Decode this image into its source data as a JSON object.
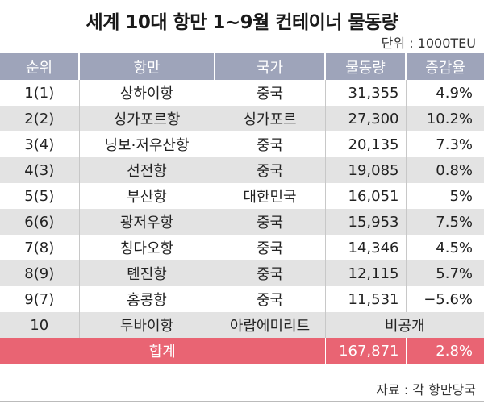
{
  "title": "세계 10대 항만 1~9월 컨테이너 물동량",
  "unit": "단위 : 1000TEU",
  "headers": [
    "순위",
    "항만",
    "국가",
    "물동량",
    "증감율"
  ],
  "rows": [
    {
      "rank": "1(1)",
      "port": "상하이항",
      "country": "중국",
      "volume": "31,355",
      "change": "4.9%"
    },
    {
      "rank": "2(2)",
      "port": "싱가포르항",
      "country": "싱가포르",
      "volume": "27,300",
      "change": "10.2%"
    },
    {
      "rank": "3(4)",
      "port": "닝보·저우산항",
      "country": "중국",
      "volume": "20,135",
      "change": "7.3%"
    },
    {
      "rank": "4(3)",
      "port": "선전항",
      "country": "중국",
      "volume": "19,085",
      "change": "0.8%"
    },
    {
      "rank": "5(5)",
      "port": "부산항",
      "country": "대한민국",
      "volume": "16,051",
      "change": "5%"
    },
    {
      "rank": "6(6)",
      "port": "광저우항",
      "country": "중국",
      "volume": "15,953",
      "change": "7.5%"
    },
    {
      "rank": "7(8)",
      "port": "칭다오항",
      "country": "중국",
      "volume": "14,346",
      "change": "4.5%"
    },
    {
      "rank": "8(9)",
      "port": "톈진항",
      "country": "중국",
      "volume": "12,115",
      "change": "5.7%"
    },
    {
      "rank": "9(7)",
      "port": "홍콩항",
      "country": "중국",
      "volume": "11,531",
      "change": "−5.6%"
    }
  ],
  "row10": {
    "rank": "10",
    "port": "두바이항",
    "country": "아랍에미리트",
    "undisclosed": "비공개"
  },
  "total": {
    "label": "합계",
    "volume": "167,871",
    "change": "2.8%"
  },
  "source": "자료 : 각 항만당국",
  "colors": {
    "header_bg": "#9ea4ba",
    "total_bg": "#e96473",
    "stripe": "#e3e3e3"
  }
}
